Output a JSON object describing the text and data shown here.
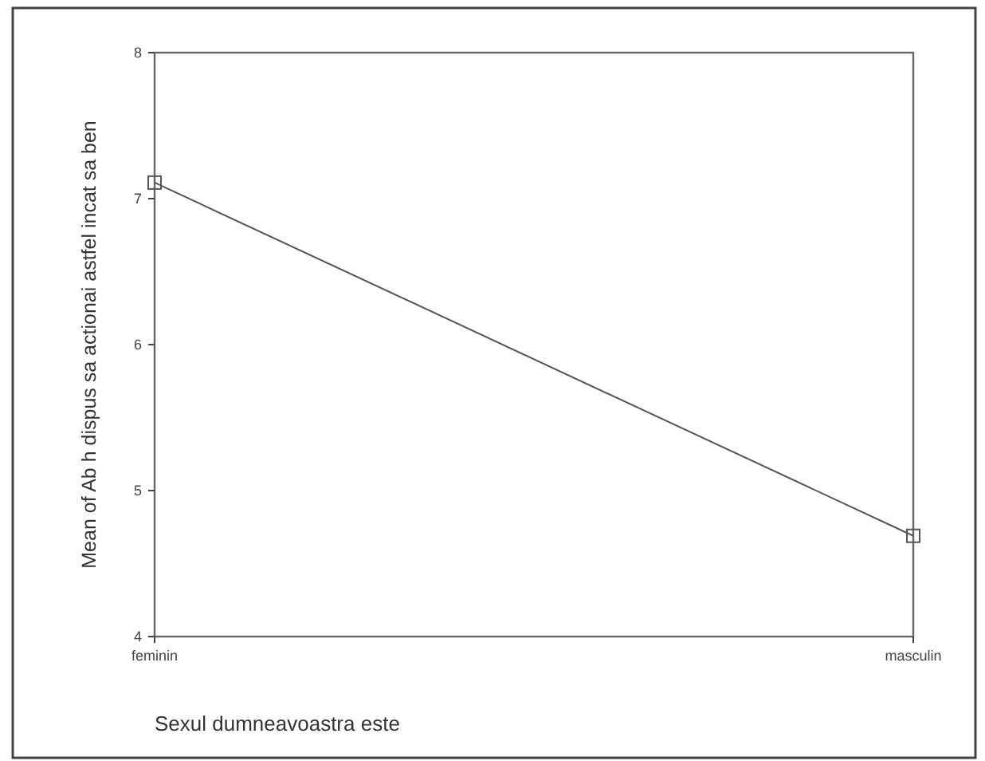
{
  "chart_data": {
    "type": "line",
    "xlabel": "Sexul dumneavoastra este",
    "ylabel": "Mean of Ab h dispus sa actionai astfel incat sa ben",
    "categories": [
      "feminin",
      "masculin"
    ],
    "series": [
      {
        "color": "#555555",
        "values": [
          7.11,
          4.69
        ]
      }
    ],
    "ylim": [
      4,
      8
    ],
    "yticks": [
      4,
      5,
      6,
      7,
      8
    ],
    "marker": "square",
    "line_style": "solid"
  }
}
